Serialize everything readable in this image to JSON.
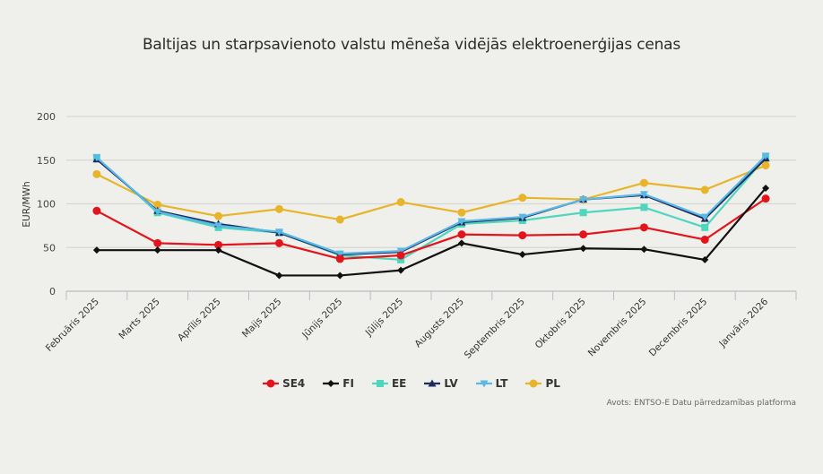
{
  "chart_data": {
    "type": "line",
    "title": "Baltijas un starpsavienoto valstu mēneša vidējās elektroenerģijas cenas",
    "xlabel": "",
    "ylabel": "EUR/MWh",
    "ylim": [
      0,
      200
    ],
    "yticks": [
      0,
      50,
      100,
      150,
      200
    ],
    "grid": true,
    "legend_position": "bottom",
    "categories": [
      "Februāris 2025",
      "Marts 2025",
      "Aprīlis 2025",
      "Maijs 2025",
      "Jūnijs 2025",
      "Jūlijs 2025",
      "Augusts 2025",
      "Septembris 2025",
      "Oktobris 2025",
      "Novembris 2025",
      "Decembris 2025",
      "Janvāris 2026"
    ],
    "series": [
      {
        "name": "SE4",
        "color": "#e3141b",
        "marker": "circle",
        "values": [
          92,
          55,
          53,
          55,
          37,
          41,
          65,
          64,
          65,
          73,
          59,
          106
        ]
      },
      {
        "name": "FI",
        "color": "#111111",
        "marker": "diamond",
        "values": [
          47,
          47,
          47,
          18,
          18,
          24,
          55,
          42,
          49,
          48,
          36,
          118
        ]
      },
      {
        "name": "EE",
        "color": "#4fd6bd",
        "marker": "square",
        "values": [
          153,
          90,
          73,
          67,
          41,
          36,
          77,
          81,
          90,
          96,
          73,
          153
        ]
      },
      {
        "name": "LV",
        "color": "#1c2a5e",
        "marker": "triangle",
        "values": [
          151,
          92,
          77,
          67,
          42,
          45,
          79,
          84,
          105,
          110,
          83,
          152
        ]
      },
      {
        "name": "LT",
        "color": "#5bb8e6",
        "marker": "triangle-down",
        "values": [
          153,
          91,
          75,
          68,
          43,
          46,
          80,
          85,
          105,
          111,
          85,
          155
        ]
      },
      {
        "name": "PL",
        "color": "#e8b52a",
        "marker": "circle",
        "values": [
          134,
          99,
          86,
          94,
          82,
          102,
          90,
          107,
          105,
          124,
          116,
          144
        ]
      }
    ],
    "source": "Avots: ENTSO-E Datu pārredzamības platforma"
  }
}
